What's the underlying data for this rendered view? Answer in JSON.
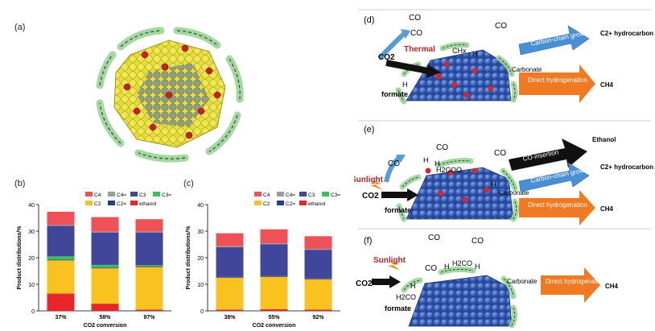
{
  "panels": {
    "a": {
      "label": "(a)"
    },
    "b": {
      "label": "(b)"
    },
    "c": {
      "label": "(c)"
    },
    "d": {
      "label": "(d)",
      "texts": [
        "CO",
        "CO",
        "CO",
        "CO2",
        "Thermal",
        "CHx",
        "H",
        "H",
        "formate",
        "Carbonate"
      ],
      "arrows": [
        {
          "text": "Carbon-chain growth",
          "result": "C2+ hydrocarbon",
          "color": "#4a8fd6"
        },
        {
          "text": "Direct hydrogenation",
          "result": "CH4",
          "color": "#f07a21"
        }
      ]
    },
    "e": {
      "label": "(e)",
      "texts": [
        "CO",
        "CO",
        "CO",
        "H",
        "H",
        "H2COO",
        "Sunlight",
        "CO2",
        "formate",
        "Carbonate",
        "H"
      ],
      "arrows": [
        {
          "text": "CO-insertion",
          "result": "Ethanol",
          "color": "#111111"
        },
        {
          "text": "Carbon-chain growth",
          "result": "C2+ hydrocarbon",
          "color": "#4a8fd6"
        },
        {
          "text": "Direct hydrogenation",
          "result": "CH4",
          "color": "#f07a21"
        }
      ]
    },
    "f": {
      "label": "(f)",
      "texts": [
        "CO",
        "CO",
        "Sunlight",
        "CO",
        "H",
        "H2CO",
        "H",
        "CO2",
        "H",
        "H2CO",
        "formate",
        "Carbonate"
      ],
      "arrows": [
        {
          "text": "Direct hydrogenation",
          "result": "CH4",
          "color": "#f07a21"
        }
      ]
    }
  },
  "chart_data": [
    {
      "panel": "b",
      "type": "bar",
      "stacked": true,
      "categories": [
        "37%",
        "58%",
        "97%"
      ],
      "xlabel": "CO2 conversion",
      "ylabel": "Product distributions/%",
      "ylim": [
        0,
        40
      ],
      "yticks": [
        0,
        10,
        20,
        30,
        40
      ],
      "legend": [
        "C4",
        "C4=",
        "C3",
        "C3=",
        "C2",
        "C2=",
        "ethanol"
      ],
      "series": [
        {
          "name": "ethanol",
          "color": "#e8262a",
          "values": [
            6.5,
            2.7,
            0.5
          ]
        },
        {
          "name": "C2",
          "color": "#f9c21e",
          "values": [
            12.5,
            13.3,
            16.0
          ]
        },
        {
          "name": "C2=",
          "color": "#233e8b",
          "values": [
            0.3,
            0.3,
            0.3
          ]
        },
        {
          "name": "C3=",
          "color": "#3dbf5a",
          "values": [
            1.2,
            1.0,
            0.4
          ]
        },
        {
          "name": "C3",
          "color": "#40469a",
          "values": [
            11.5,
            12.2,
            12.3
          ]
        },
        {
          "name": "C4=",
          "color": "#9b9b9b",
          "values": [
            0.3,
            0.3,
            0.3
          ]
        },
        {
          "name": "C4",
          "color": "#ee5257",
          "values": [
            5.0,
            5.5,
            4.7
          ]
        }
      ]
    },
    {
      "panel": "c",
      "type": "bar",
      "stacked": true,
      "categories": [
        "38%",
        "55%",
        "92%"
      ],
      "xlabel": "CO2 conversion",
      "ylabel": "Product distributions/%",
      "ylim": [
        0,
        40
      ],
      "yticks": [
        0,
        10,
        20,
        30,
        40
      ],
      "legend": [
        "C4",
        "C4=",
        "C3",
        "C3=",
        "C2",
        "C2=",
        "ethanol"
      ],
      "series": [
        {
          "name": "ethanol",
          "color": "#e8262a",
          "values": [
            0.5,
            0.6,
            0.5
          ]
        },
        {
          "name": "C2",
          "color": "#f9c21e",
          "values": [
            12.0,
            12.2,
            11.4
          ]
        },
        {
          "name": "C2=",
          "color": "#233e8b",
          "values": [
            0.3,
            0.3,
            0.3
          ]
        },
        {
          "name": "C3=",
          "color": "#3dbf5a",
          "values": [
            0.0,
            0.0,
            0.0
          ]
        },
        {
          "name": "C3",
          "color": "#40469a",
          "values": [
            11.2,
            12.0,
            10.8
          ]
        },
        {
          "name": "C4=",
          "color": "#9b9b9b",
          "values": [
            0.3,
            0.3,
            0.3
          ]
        },
        {
          "name": "C4",
          "color": "#ee5257",
          "values": [
            4.9,
            5.3,
            4.8
          ]
        }
      ]
    }
  ]
}
